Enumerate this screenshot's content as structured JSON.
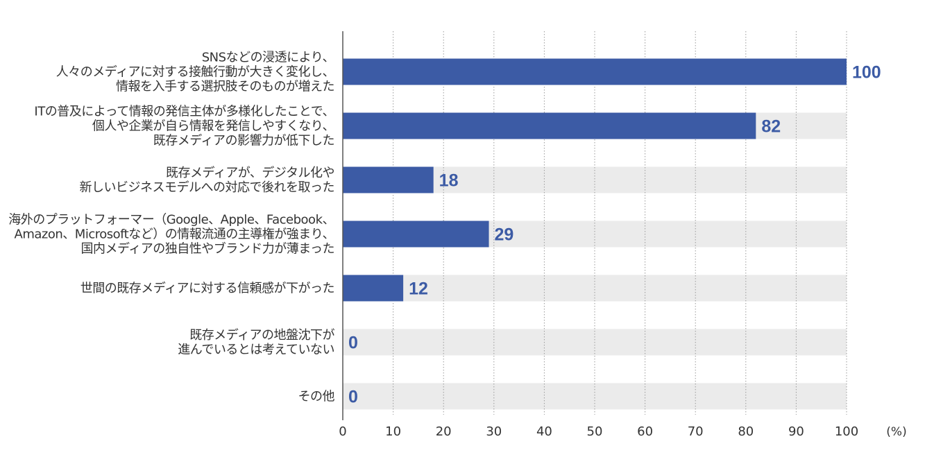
{
  "chart_data": {
    "type": "bar",
    "orientation": "horizontal",
    "categories": [
      [
        "SNSなどの浸透により、",
        "人々のメディアに対する接触行動が大きく変化し、",
        "情報を入手する選択肢そのものが増えた"
      ],
      [
        "ITの普及によって情報の発信主体が多様化したことで、",
        "個人や企業が自ら情報を発信しやすくなり、",
        "既存メディアの影響力が低下した"
      ],
      [
        "既存メディアが、デジタル化や",
        "新しいビジネスモデルへの対応で後れを取った"
      ],
      [
        "海外のプラットフォーマー（Google、Apple、Facebook、",
        "Amazon、Microsoftなど）の情報流通の主導権が強まり、",
        "国内メディアの独自性やブランド力が薄まった"
      ],
      [
        "世間の既存メディアに対する信頼感が下がった"
      ],
      [
        "既存メディアの地盤沈下が",
        "進んでいるとは考えていない"
      ],
      [
        "その他"
      ]
    ],
    "values": [
      100,
      82,
      18,
      29,
      12,
      0,
      0
    ],
    "value_labels": [
      "100",
      "82",
      "18",
      "29",
      "12",
      "0",
      "0"
    ],
    "xlim": [
      0,
      100
    ],
    "x_ticks": [
      "0",
      "10",
      "20",
      "30",
      "40",
      "50",
      "60",
      "70",
      "80",
      "90",
      "100"
    ],
    "x_unit": "(%)",
    "grid": true,
    "colors": {
      "bar": "#3c5ba5",
      "track": "#ebebeb",
      "grid": "#9a9a9a",
      "axis": "#555555",
      "value_text": "#3c5ba5"
    }
  }
}
